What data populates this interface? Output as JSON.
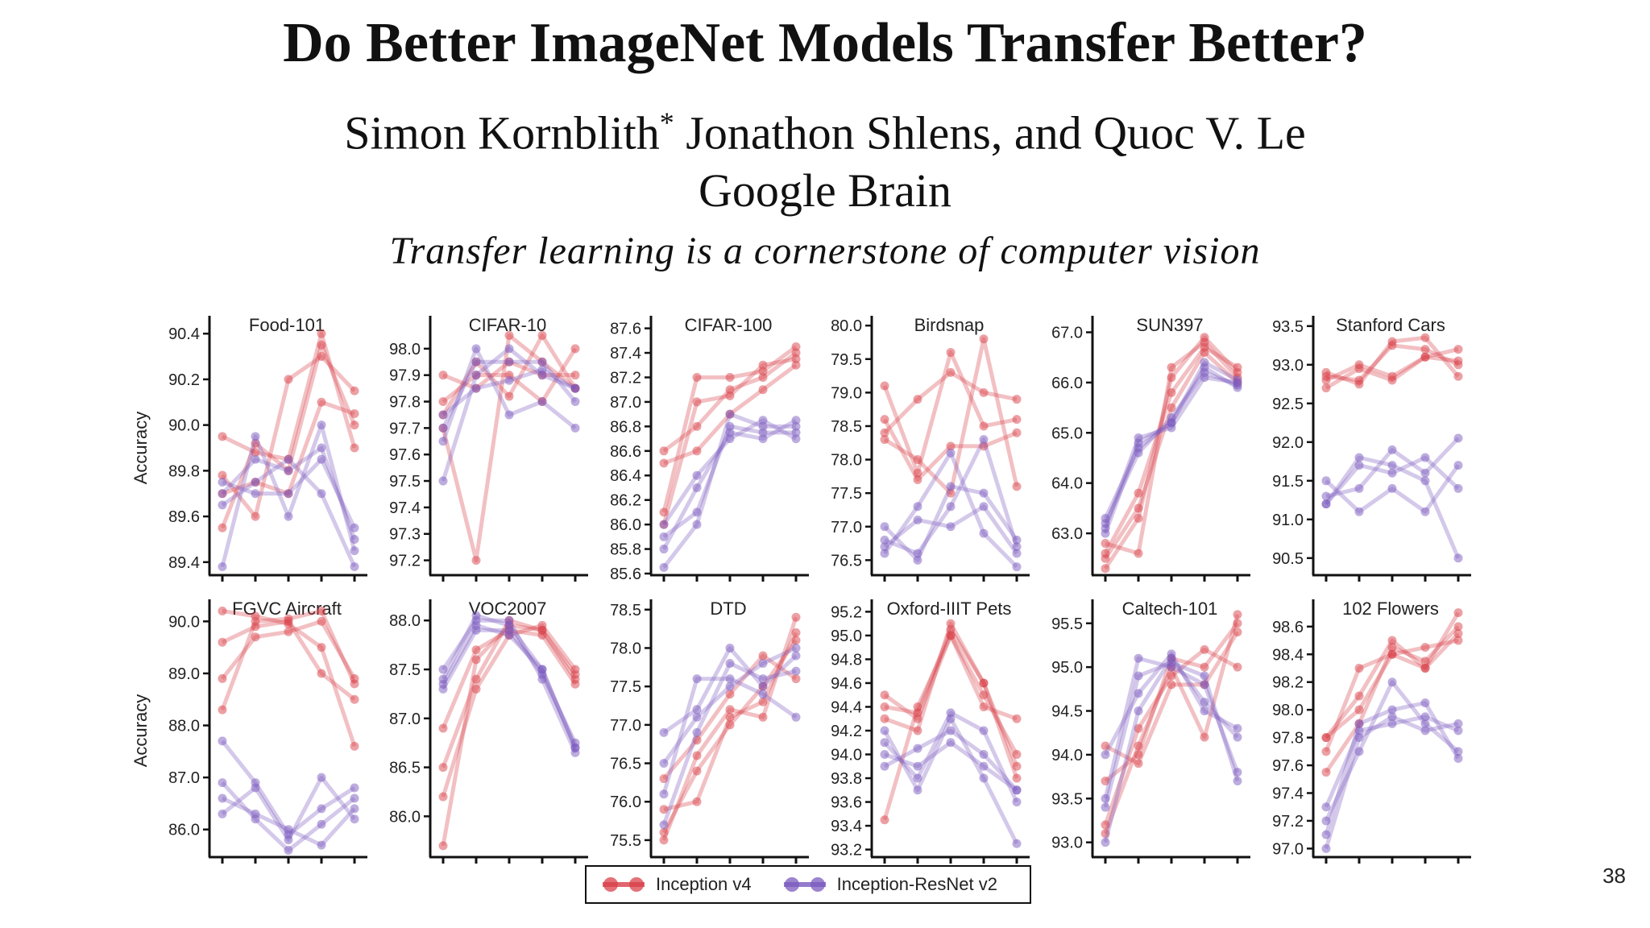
{
  "paper": {
    "title": "Do Better ImageNet Models Transfer Better?",
    "authors_main": "Simon Kornblith",
    "authors_star": "*",
    "authors_rest": " Jonathon Shlens, and Quoc V. Le",
    "affiliation": "Google Brain",
    "subtitle": "Transfer learning is a cornerstone of computer vision",
    "page_number": "38"
  },
  "colors": {
    "red": "#d9414a",
    "purple": "#7b5bbf"
  },
  "legend": {
    "series1": "Inception v4",
    "series2": "Inception-ResNet v2"
  },
  "chart_data": [
    {
      "type": "line",
      "title": "Food-101",
      "ylabel": "Accuracy",
      "ylim": [
        89.35,
        90.45
      ],
      "ticks": [
        "89.4",
        "89.6",
        "89.8",
        "90.0",
        "90.2",
        "90.4"
      ],
      "series": [
        {
          "name": "Inception v4",
          "lines": [
            [
              89.55,
              89.92,
              89.8,
              90.35,
              90.0
            ],
            [
              89.78,
              89.6,
              90.2,
              90.3,
              90.15
            ],
            [
              89.95,
              89.88,
              89.85,
              90.4,
              89.9
            ],
            [
              89.7,
              89.75,
              89.7,
              90.1,
              90.05
            ]
          ]
        },
        {
          "name": "Inception-ResNet v2",
          "lines": [
            [
              89.38,
              89.95,
              89.6,
              90.0,
              89.45
            ],
            [
              89.7,
              89.85,
              89.8,
              89.9,
              89.5
            ],
            [
              89.65,
              89.75,
              89.85,
              89.7,
              89.38
            ],
            [
              89.75,
              89.7,
              89.7,
              89.85,
              89.55
            ]
          ]
        }
      ]
    },
    {
      "type": "line",
      "title": "CIFAR-10",
      "ylabel": "",
      "ylim": [
        97.15,
        98.1
      ],
      "ticks": [
        "97.2",
        "97.3",
        "97.4",
        "97.5",
        "97.6",
        "97.7",
        "97.8",
        "97.9",
        "98.0"
      ],
      "series": [
        {
          "name": "Inception v4",
          "lines": [
            [
              97.7,
              97.2,
              98.05,
              97.95,
              97.85
            ],
            [
              97.9,
              97.85,
              97.95,
              97.9,
              97.9
            ],
            [
              97.75,
              97.95,
              97.82,
              98.05,
              97.85
            ],
            [
              97.8,
              97.9,
              97.9,
              97.8,
              98.0
            ]
          ]
        },
        {
          "name": "Inception-ResNet v2",
          "lines": [
            [
              97.65,
              98.0,
              97.75,
              97.8,
              97.7
            ],
            [
              97.5,
              97.9,
              98.0,
              97.9,
              97.85
            ],
            [
              97.7,
              97.95,
              97.95,
              97.95,
              97.8
            ],
            [
              97.75,
              97.85,
              97.88,
              97.92,
              97.85
            ]
          ]
        }
      ]
    },
    {
      "type": "line",
      "title": "CIFAR-100",
      "ylabel": "",
      "ylim": [
        85.6,
        87.65
      ],
      "ticks": [
        "85.6",
        "85.8",
        "86.0",
        "86.2",
        "86.4",
        "86.6",
        "86.8",
        "87.0",
        "87.2",
        "87.4",
        "87.6"
      ],
      "series": [
        {
          "name": "Inception v4",
          "lines": [
            [
              86.1,
              87.2,
              87.2,
              87.25,
              87.45
            ],
            [
              86.6,
              86.8,
              87.1,
              87.2,
              87.4
            ],
            [
              86.0,
              87.0,
              87.05,
              87.3,
              87.35
            ],
            [
              86.5,
              86.6,
              86.9,
              87.1,
              87.3
            ]
          ]
        },
        {
          "name": "Inception-ResNet v2",
          "lines": [
            [
              85.65,
              86.0,
              86.9,
              86.8,
              86.8
            ],
            [
              85.8,
              86.3,
              86.75,
              86.7,
              86.85
            ],
            [
              86.0,
              86.4,
              86.7,
              86.85,
              86.7
            ],
            [
              85.9,
              86.1,
              86.8,
              86.75,
              86.75
            ]
          ]
        }
      ]
    },
    {
      "type": "line",
      "title": "Birdsnap",
      "ylabel": "",
      "ylim": [
        76.3,
        80.05
      ],
      "ticks": [
        "76.5",
        "77.0",
        "77.5",
        "78.0",
        "78.5",
        "79.0",
        "79.5",
        "80.0"
      ],
      "series": [
        {
          "name": "Inception v4",
          "lines": [
            [
              79.1,
              77.8,
              79.6,
              78.5,
              78.6
            ],
            [
              78.3,
              78.0,
              77.5,
              79.8,
              77.6
            ],
            [
              78.4,
              78.9,
              79.3,
              79.0,
              78.9
            ],
            [
              78.6,
              77.7,
              78.2,
              78.2,
              78.4
            ]
          ]
        },
        {
          "name": "Inception-ResNet v2",
          "lines": [
            [
              76.6,
              77.3,
              78.1,
              76.9,
              76.4
            ],
            [
              76.8,
              76.6,
              77.3,
              78.3,
              76.7
            ],
            [
              77.0,
              76.5,
              77.6,
              77.5,
              76.8
            ],
            [
              76.7,
              77.1,
              77.0,
              77.3,
              76.6
            ]
          ]
        }
      ]
    },
    {
      "type": "line",
      "title": "SUN397",
      "ylabel": "",
      "ylim": [
        62.2,
        67.2
      ],
      "ticks": [
        "63.0",
        "64.0",
        "65.0",
        "66.0",
        "67.0"
      ],
      "series": [
        {
          "name": "Inception v4",
          "lines": [
            [
              62.3,
              63.3,
              66.1,
              66.9,
              66.2
            ],
            [
              62.6,
              63.8,
              65.8,
              66.7,
              66.3
            ],
            [
              62.8,
              62.6,
              66.3,
              66.8,
              66.1
            ],
            [
              62.5,
              63.5,
              65.5,
              66.6,
              66.0
            ]
          ]
        },
        {
          "name": "Inception-ResNet v2",
          "lines": [
            [
              63.3,
              64.7,
              65.2,
              66.3,
              65.9
            ],
            [
              63.1,
              64.9,
              65.1,
              66.1,
              66.0
            ],
            [
              63.2,
              64.6,
              65.3,
              66.2,
              65.95
            ],
            [
              63.0,
              64.8,
              65.2,
              66.4,
              66.05
            ]
          ]
        }
      ]
    },
    {
      "type": "line",
      "title": "Stanford Cars",
      "ylabel": "",
      "ylim": [
        90.3,
        93.55
      ],
      "ticks": [
        "90.5",
        "91.0",
        "91.5",
        "92.0",
        "92.5",
        "93.0",
        "93.5"
      ],
      "series": [
        {
          "name": "Inception v4",
          "lines": [
            [
              92.9,
              92.75,
              93.3,
              93.35,
              92.85
            ],
            [
              92.7,
              92.95,
              92.8,
              93.1,
              93.2
            ],
            [
              92.85,
              92.8,
              93.25,
              93.2,
              93.0
            ],
            [
              92.8,
              93.0,
              92.85,
              93.1,
              93.05
            ]
          ]
        },
        {
          "name": "Inception-ResNet v2",
          "lines": [
            [
              91.2,
              91.8,
              91.7,
              91.5,
              90.5
            ],
            [
              91.5,
              91.1,
              91.4,
              91.1,
              91.7
            ],
            [
              91.3,
              91.4,
              91.9,
              91.6,
              92.05
            ],
            [
              91.2,
              91.7,
              91.6,
              91.8,
              91.4
            ]
          ]
        }
      ]
    },
    {
      "type": "line",
      "title": "FGVC Aircraft",
      "ylabel": "Accuracy",
      "ylim": [
        85.5,
        90.3
      ],
      "ticks": [
        "86.0",
        "87.0",
        "88.0",
        "89.0",
        "90.0"
      ],
      "series": [
        {
          "name": "Inception v4",
          "lines": [
            [
              88.3,
              90.0,
              90.05,
              90.2,
              88.8
            ],
            [
              89.6,
              89.9,
              90.0,
              89.0,
              88.5
            ],
            [
              90.2,
              90.1,
              89.95,
              89.5,
              87.6
            ],
            [
              88.9,
              89.7,
              89.8,
              90.0,
              88.9
            ]
          ]
        },
        {
          "name": "Inception-ResNet v2",
          "lines": [
            [
              87.7,
              86.9,
              85.9,
              86.4,
              86.8
            ],
            [
              86.9,
              86.2,
              85.6,
              86.1,
              86.6
            ],
            [
              86.3,
              86.8,
              85.8,
              87.0,
              86.2
            ],
            [
              86.6,
              86.3,
              86.0,
              85.7,
              86.4
            ]
          ]
        }
      ]
    },
    {
      "type": "line",
      "title": "VOC2007",
      "ylabel": "",
      "ylim": [
        85.6,
        88.15
      ],
      "ticks": [
        "86.0",
        "86.5",
        "87.0",
        "87.5",
        "88.0"
      ],
      "series": [
        {
          "name": "Inception v4",
          "lines": [
            [
              85.7,
              87.6,
              87.95,
              87.9,
              87.4
            ],
            [
              86.2,
              87.3,
              87.85,
              87.95,
              87.5
            ],
            [
              86.9,
              87.7,
              87.9,
              87.85,
              87.35
            ],
            [
              86.5,
              87.4,
              88.0,
              87.9,
              87.45
            ]
          ]
        },
        {
          "name": "Inception-ResNet v2",
          "lines": [
            [
              87.4,
              88.05,
              87.95,
              87.5,
              86.7
            ],
            [
              87.3,
              87.9,
              87.9,
              87.45,
              86.75
            ],
            [
              87.5,
              88.0,
              88.0,
              87.4,
              86.65
            ],
            [
              87.35,
              87.95,
              87.85,
              87.5,
              86.7
            ]
          ]
        }
      ]
    },
    {
      "type": "line",
      "title": "DTD",
      "ylabel": "",
      "ylim": [
        75.3,
        78.55
      ],
      "ticks": [
        "75.5",
        "76.0",
        "76.5",
        "77.0",
        "77.5",
        "78.0",
        "78.5"
      ],
      "series": [
        {
          "name": "Inception v4",
          "lines": [
            [
              75.5,
              76.6,
              77.2,
              77.1,
              78.4
            ],
            [
              75.6,
              76.4,
              77.0,
              77.5,
              78.1
            ],
            [
              76.3,
              76.8,
              77.4,
              77.9,
              77.6
            ],
            [
              75.9,
              76.0,
              77.1,
              77.3,
              78.2
            ]
          ]
        },
        {
          "name": "Inception-ResNet v2",
          "lines": [
            [
              76.9,
              77.2,
              78.0,
              77.5,
              77.9
            ],
            [
              76.1,
              77.6,
              77.6,
              77.4,
              77.1
            ],
            [
              75.7,
              76.9,
              77.8,
              77.6,
              77.7
            ],
            [
              76.5,
              77.1,
              77.5,
              77.8,
              78.0
            ]
          ]
        }
      ]
    },
    {
      "type": "line",
      "title": "Oxford-IIIT Pets",
      "ylabel": "",
      "ylim": [
        93.15,
        95.25
      ],
      "ticks": [
        "93.2",
        "93.4",
        "93.6",
        "93.8",
        "94.0",
        "94.2",
        "94.4",
        "94.6",
        "94.8",
        "95.0",
        "95.2"
      ],
      "series": [
        {
          "name": "Inception v4",
          "lines": [
            [
              94.4,
              94.35,
              95.05,
              94.6,
              93.8
            ],
            [
              94.5,
              94.3,
              95.0,
              94.4,
              94.3
            ],
            [
              93.45,
              94.4,
              95.0,
              94.5,
              94.0
            ],
            [
              94.3,
              94.2,
              95.1,
              94.6,
              93.9
            ]
          ]
        },
        {
          "name": "Inception-ResNet v2",
          "lines": [
            [
              94.2,
              93.7,
              94.3,
              93.8,
              93.25
            ],
            [
              93.9,
              94.05,
              94.2,
              94.0,
              93.7
            ],
            [
              94.1,
              93.8,
              94.35,
              94.2,
              93.6
            ],
            [
              94.0,
              93.9,
              94.1,
              93.9,
              93.7
            ]
          ]
        }
      ]
    },
    {
      "type": "line",
      "title": "Caltech-101",
      "ylabel": "",
      "ylim": [
        92.85,
        95.7
      ],
      "ticks": [
        "93.0",
        "93.5",
        "94.0",
        "94.5",
        "95.0",
        "95.5"
      ],
      "series": [
        {
          "name": "Inception v4",
          "lines": [
            [
              93.1,
              94.1,
              95.0,
              94.2,
              95.6
            ],
            [
              93.2,
              94.3,
              94.9,
              95.2,
              95.0
            ],
            [
              93.7,
              94.0,
              95.1,
              95.0,
              95.5
            ],
            [
              94.1,
              93.9,
              94.8,
              94.8,
              95.4
            ]
          ]
        },
        {
          "name": "Inception-ResNet v2",
          "lines": [
            [
              93.5,
              95.1,
              95.0,
              94.8,
              93.8
            ],
            [
              93.0,
              94.5,
              95.1,
              94.6,
              94.2
            ],
            [
              93.4,
              94.9,
              95.05,
              94.9,
              93.7
            ],
            [
              94.0,
              94.7,
              95.15,
              94.5,
              94.3
            ]
          ]
        }
      ]
    },
    {
      "type": "line",
      "title": "102 Flowers",
      "ylabel": "",
      "ylim": [
        96.95,
        98.75
      ],
      "ticks": [
        "97.0",
        "97.2",
        "97.4",
        "97.6",
        "97.8",
        "98.0",
        "98.2",
        "98.4",
        "98.6"
      ],
      "series": [
        {
          "name": "Inception v4",
          "lines": [
            [
              97.8,
              98.1,
              98.5,
              98.3,
              98.7
            ],
            [
              97.7,
              98.3,
              98.4,
              98.45,
              98.5
            ],
            [
              97.55,
              97.9,
              98.45,
              98.35,
              98.6
            ],
            [
              97.8,
              98.0,
              98.4,
              98.3,
              98.55
            ]
          ]
        },
        {
          "name": "Inception-ResNet v2",
          "lines": [
            [
              97.2,
              97.7,
              98.2,
              97.9,
              97.7
            ],
            [
              97.1,
              97.9,
              98.0,
              98.05,
              97.65
            ],
            [
              97.3,
              97.85,
              97.9,
              97.95,
              97.85
            ],
            [
              97.0,
              97.8,
              97.95,
              97.85,
              97.9
            ]
          ]
        }
      ]
    }
  ]
}
